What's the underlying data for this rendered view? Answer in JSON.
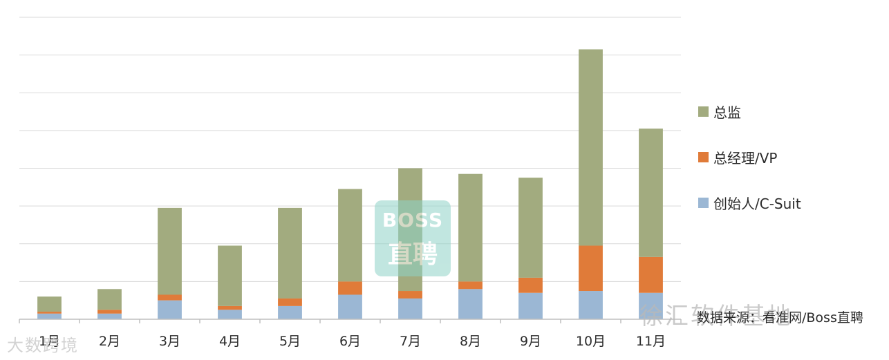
{
  "chart_data": {
    "type": "bar",
    "stacked": true,
    "categories": [
      "1月",
      "2月",
      "3月",
      "4月",
      "5月",
      "6月",
      "7月",
      "8月",
      "9月",
      "10月",
      "11月"
    ],
    "series": [
      {
        "name": "创始人/C-Suit",
        "color": "#9bb7d4",
        "values": [
          1.5,
          1.5,
          5,
          2.5,
          3.5,
          6.5,
          5.5,
          8,
          7,
          7.5,
          7
        ]
      },
      {
        "name": "总经理/VP",
        "color": "#e07b39",
        "values": [
          0.5,
          1,
          1.5,
          1,
          2,
          3.5,
          2,
          2,
          4,
          12,
          9.5
        ]
      },
      {
        "name": "总监",
        "color": "#a2ab7f",
        "values": [
          4,
          5.5,
          23,
          16,
          24,
          24.5,
          32.5,
          28.5,
          26.5,
          52,
          34
        ]
      }
    ],
    "ylim": [
      0,
      80
    ],
    "grid": true,
    "legend_position": "right"
  },
  "watermark": {
    "line1": "BOSS",
    "line2": "直聘"
  },
  "source_note": "数据来源：看准网/Boss直聘",
  "overlay_marks": {
    "right": "徐汇软件基地",
    "bottom": "大数跨境"
  }
}
